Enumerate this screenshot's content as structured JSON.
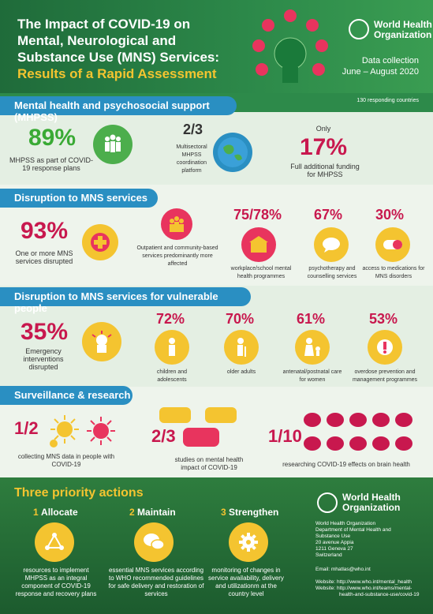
{
  "header": {
    "title": "The Impact of COVID-19 on Mental, Neurological and Substance Use (MNS) Services:",
    "subtitle": "Results of a Rapid Assessment",
    "who_name_line1": "World Health",
    "who_name_line2": "Organization",
    "data_collection": "Data collection",
    "period": "June – August 2020",
    "responding": "130 responding countries"
  },
  "sections": {
    "mhpss": "Mental health and psychosocial support (MHPSS)",
    "disruption": "Disruption to MNS services",
    "vulnerable": "Disruption to MNS services for vulnerable people",
    "surveillance": "Surveillance & research"
  },
  "mhpss": {
    "pct": "89%",
    "pct_label": "MHPSS as part of COVID-19 response plans",
    "fraction": "2/3",
    "fraction_label": "Multisectoral MHPSS coordination platform",
    "only": "Only",
    "funding_pct": "17%",
    "funding_label": "Full additional funding for MHPSS"
  },
  "disruption": {
    "pct": "93%",
    "pct_label": "One or more MNS services disrupted",
    "outpatient_label": "Outpatient and community-based services predominantly more affected",
    "school_pct": "75/78%",
    "school_label": "workplace/school mental health programmes",
    "psycho_pct": "67%",
    "psycho_label": "psychotherapy and counselling services",
    "meds_pct": "30%",
    "meds_label": "access to medications for MNS disorders"
  },
  "vulnerable": {
    "pct": "35%",
    "pct_label": "Emergency interventions disrupted",
    "children_pct": "72%",
    "children_label": "children and adolescents",
    "older_pct": "70%",
    "older_label": "older adults",
    "antenatal_pct": "61%",
    "antenatal_label": "antenatal/postnatal care for women",
    "overdose_pct": "53%",
    "overdose_label": "overdose prevention and management programmes"
  },
  "surveillance": {
    "half": "1/2",
    "half_label": "collecting MNS data in people with COVID-19",
    "twothirds": "2/3",
    "twothirds_label": "studies on mental health impact of COVID-19",
    "tenth": "1/10",
    "tenth_label": "researching COVID-19 effects on brain health"
  },
  "actions": {
    "title": "Three priority actions",
    "a1_num": "1",
    "a1_title": "Allocate",
    "a1_text": "resources to implement MHPSS as an integral component of COVID-19 response and recovery plans",
    "a2_num": "2",
    "a2_title": "Maintain",
    "a2_text": "essential MNS services according to WHO recommended guidelines for safe delivery and restoration of services",
    "a3_num": "3",
    "a3_title": "Strengthen",
    "a3_text": "monitoring of changes in service availability, delivery and utilizationm at the country level"
  },
  "footer": {
    "who_line1": "World Health",
    "who_line2": "Organization",
    "org": "World Health Organization",
    "dept1": "Department of Mental Health and",
    "dept2": "Substance Use",
    "addr1": "20 avenue Appia",
    "addr2": "1211 Geneva 27",
    "addr3": "Switzerland",
    "email": "Email: mhatlas@who.int",
    "web1": "Website: http://www.who.int/mental_health",
    "web2": "Website: http://www.who.int/teams/mental-",
    "web3": "health-and-substance-use/covid-19"
  },
  "colors": {
    "green": "#2d8a4a",
    "blue": "#2a8fc2",
    "red": "#c8184e",
    "yellow": "#f4c430"
  }
}
